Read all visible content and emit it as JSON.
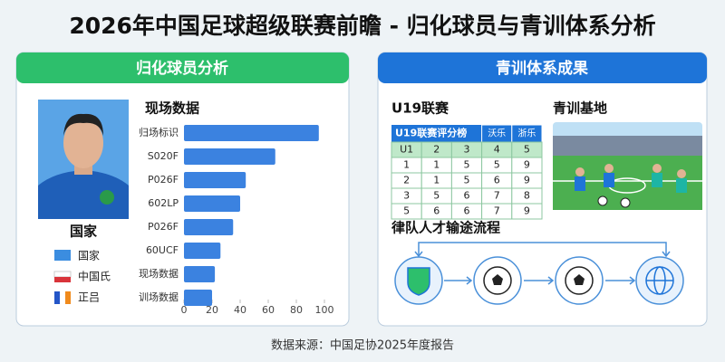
{
  "title": "2026年中国足球超级联赛前瞻 - 归化球员与青训体系分析",
  "source": "数据来源：中国足协2025年度报告",
  "left_panel": {
    "header": "归化球员分析",
    "player_label": "国家",
    "legend": [
      "国家",
      "中国氏",
      "正吕"
    ]
  },
  "chart_data": {
    "type": "bar",
    "orientation": "horizontal",
    "title": "现场数据",
    "categories": [
      "归场标识",
      "S020F",
      "P026F",
      "602LP",
      "P026F",
      "60UCF",
      "现场数据",
      "训场数据"
    ],
    "values": [
      96,
      65,
      44,
      40,
      35,
      26,
      22,
      20
    ],
    "color": "#3b82e0",
    "xlim": [
      0,
      100
    ],
    "xticks": [
      0,
      20,
      40,
      60,
      80,
      100
    ]
  },
  "right_panel": {
    "header": "青训体系成果",
    "league_title": "U19联赛",
    "base_title": "青训基地",
    "flow_title": "律队人才输途流程",
    "table": {
      "title": "U19联赛评分榜",
      "columns": [
        "沃乐",
        "浙乐"
      ],
      "rows": [
        [
          "U1",
          2,
          3,
          4,
          5
        ],
        [
          1,
          1,
          5,
          5,
          9
        ],
        [
          2,
          1,
          5,
          6,
          9
        ],
        [
          3,
          5,
          6,
          7,
          8
        ],
        [
          5,
          6,
          6,
          7,
          9
        ]
      ]
    }
  }
}
